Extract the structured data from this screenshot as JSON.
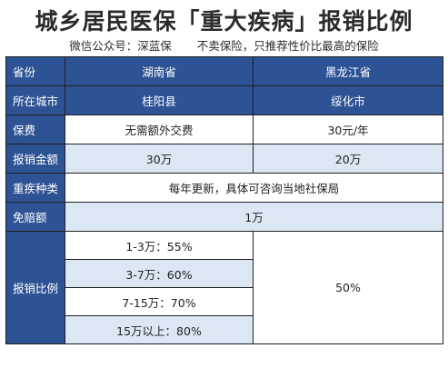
{
  "title": "城乡居民医保「重大疾病」报销比例",
  "subtitle": {
    "account": "微信公众号：深蓝保",
    "slogan": "不卖保险，只推荐性价比最高的保险"
  },
  "table": {
    "header": {
      "label": "省份",
      "col1": "湖南省",
      "col2": "黑龙江省"
    },
    "city": {
      "label": "所在城市",
      "col1": "桂阳县",
      "col2": "绥化市"
    },
    "premium": {
      "label": "保费",
      "col1": "无需额外交费",
      "col2": "30元/年"
    },
    "amount": {
      "label": "报销金额",
      "col1": "30万",
      "col2": "20万"
    },
    "disease": {
      "label": "重疾种类",
      "value": "每年更新，具体可咨询当地社保局"
    },
    "deductible": {
      "label": "免赔额",
      "value": "1万"
    },
    "ratio": {
      "label": "报销比例",
      "col1": [
        "1-3万：55%",
        "3-7万：60%",
        "7-15万：70%",
        "15万以上：80%"
      ],
      "col2": "50%"
    }
  },
  "colors": {
    "header_bg": "#2e5395",
    "light_row": "#dce7f4"
  }
}
